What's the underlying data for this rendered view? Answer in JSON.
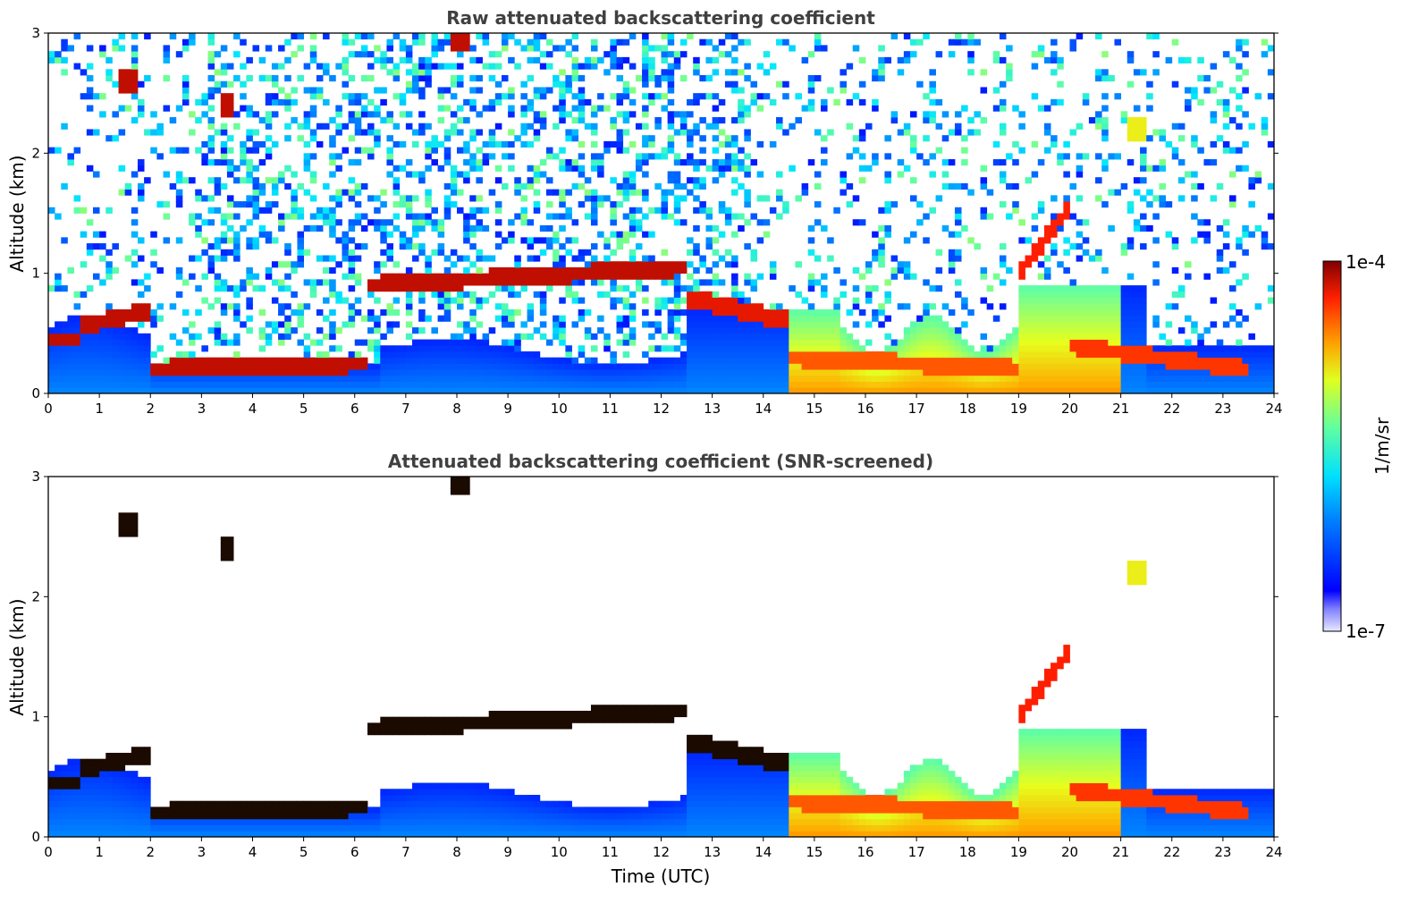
{
  "chart_data": [
    {
      "type": "heatmap",
      "title": "Raw attenuated backscattering coefficient",
      "xlabel": "",
      "ylabel": "Altitude (km)",
      "xlim": [
        0,
        24
      ],
      "ylim": [
        0,
        3
      ],
      "x_ticks": [
        "0",
        "1",
        "2",
        "3",
        "4",
        "5",
        "6",
        "7",
        "8",
        "9",
        "10",
        "11",
        "12",
        "13",
        "14",
        "15",
        "16",
        "17",
        "18",
        "19",
        "20",
        "21",
        "22",
        "23",
        "24"
      ],
      "y_ticks": [
        "0",
        "1",
        "2",
        "3"
      ],
      "screened": false,
      "layers": [
        {
          "x": [
            0,
            0.6
          ],
          "alt": [
            0.45,
            0.45
          ],
          "level": 0.95
        },
        {
          "x": [
            0.6,
            2.0
          ],
          "alt": [
            0.55,
            0.7
          ],
          "level": 0.95
        },
        {
          "x": [
            2.0,
            6.3
          ],
          "alt": [
            0.2,
            0.25
          ],
          "level": 0.95
        },
        {
          "x": [
            6.3,
            12.5
          ],
          "alt": [
            0.9,
            1.05
          ],
          "level": 0.95
        },
        {
          "x": [
            12.5,
            14.5
          ],
          "alt": [
            0.8,
            0.6
          ],
          "level": 0.92
        },
        {
          "x": [
            14.5,
            21.5
          ],
          "alt": [
            0.3,
            0.15
          ],
          "level": 0.85
        },
        {
          "x": [
            19.0,
            20.0
          ],
          "alt": [
            1.0,
            1.55
          ],
          "level": 0.9
        },
        {
          "x": [
            20.0,
            23.5
          ],
          "alt": [
            0.4,
            0.2
          ],
          "level": 0.88
        }
      ],
      "cloud_patches": [
        {
          "x": 1.6,
          "alt": 2.6,
          "level": 0.95
        },
        {
          "x": 3.5,
          "alt": 2.4,
          "level": 0.95
        },
        {
          "x": 8.1,
          "alt": 2.95,
          "level": 0.95
        },
        {
          "x": 21.3,
          "alt": 2.2,
          "level": 0.7
        }
      ]
    },
    {
      "type": "heatmap",
      "title": "Attenuated backscattering coefficient (SNR-screened)",
      "xlabel": "Time (UTC)",
      "ylabel": "Altitude (km)",
      "xlim": [
        0,
        24
      ],
      "ylim": [
        0,
        3
      ],
      "x_ticks": [
        "0",
        "1",
        "2",
        "3",
        "4",
        "5",
        "6",
        "7",
        "8",
        "9",
        "10",
        "11",
        "12",
        "13",
        "14",
        "15",
        "16",
        "17",
        "18",
        "19",
        "20",
        "21",
        "22",
        "23",
        "24"
      ],
      "y_ticks": [
        "0",
        "1",
        "2",
        "3"
      ],
      "screened": true
    }
  ],
  "colorbar": {
    "label": "1/m/sr",
    "max_label": "1e-4",
    "min_label": "1e-7",
    "colormap": "jet",
    "scale": "log",
    "range": [
      1e-07,
      0.0001
    ]
  }
}
